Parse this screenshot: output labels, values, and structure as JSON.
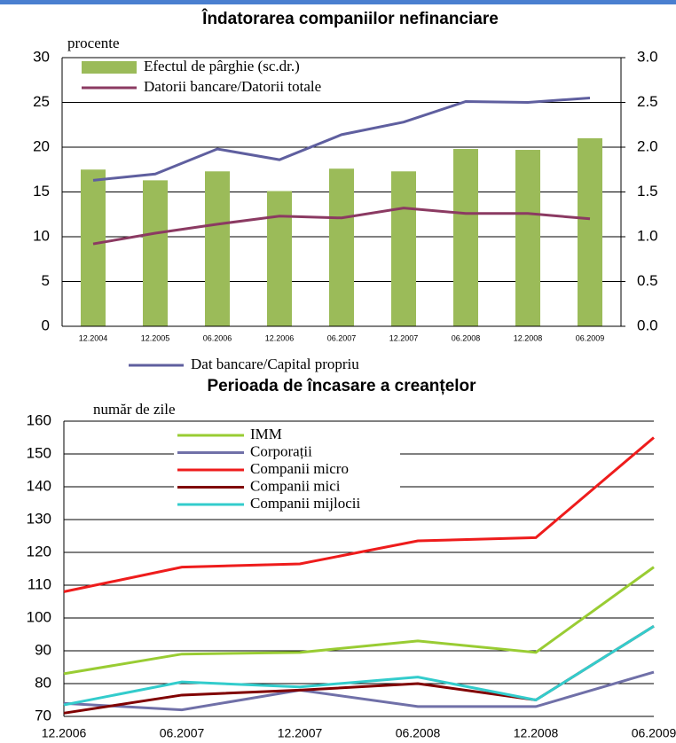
{
  "chart_data": [
    {
      "type": "bar",
      "title": "Îndatorarea companiilor nefinanciare",
      "y_label": "procente",
      "categories": [
        "12.2004",
        "12.2005",
        "06.2006",
        "12.2006",
        "06.2007",
        "12.2007",
        "06.2008",
        "12.2008",
        "06.2009"
      ],
      "series": [
        {
          "name": "Efectul de pârghie (sc.dr.)",
          "kind": "bar",
          "axis": "y2",
          "color": "#9bbb59",
          "values": [
            1.75,
            1.63,
            1.73,
            1.51,
            1.76,
            1.73,
            1.98,
            1.97,
            2.1
          ]
        },
        {
          "name": "Datorii bancare/Datorii totale",
          "kind": "line",
          "color": "#8b3a62",
          "values": [
            9.2,
            10.4,
            11.4,
            12.3,
            12.1,
            13.2,
            12.6,
            12.6,
            12.0
          ]
        },
        {
          "name": "Dat  bancare/Capital propriu",
          "kind": "line",
          "color": "#5f5f9f",
          "values": [
            16.3,
            17.0,
            19.8,
            18.6,
            21.4,
            22.8,
            25.1,
            25.0,
            25.5
          ]
        }
      ],
      "ylim": [
        0,
        30
      ],
      "yticks": [
        0,
        5,
        10,
        15,
        20,
        25,
        30
      ],
      "y2lim": [
        0,
        3
      ],
      "y2ticks": [
        {
          "value": 0,
          "label": "0.0"
        },
        {
          "value": 0.5,
          "label": "0.5"
        },
        {
          "value": 1,
          "label": "1.0"
        },
        {
          "value": 1.5,
          "label": "1.5"
        },
        {
          "value": 2,
          "label": "2.0"
        },
        {
          "value": 2.5,
          "label": "2.5"
        },
        {
          "value": 3,
          "label": "3.0"
        }
      ],
      "grid": true
    },
    {
      "type": "line",
      "title": "Perioada de încasare a creanțelor",
      "y_label": "număr de zile",
      "categories": [
        "12.2006",
        "06.2007",
        "12.2007",
        "06.2008",
        "12.2008",
        "06.2009"
      ],
      "series": [
        {
          "name": "IMM",
          "color": "#99cc33",
          "values": [
            83,
            89,
            89.5,
            93,
            89.5,
            115.5
          ]
        },
        {
          "name": "Corporații",
          "color": "#7070a8",
          "values": [
            74,
            72,
            78,
            73,
            73,
            83.5
          ]
        },
        {
          "name": "Companii micro",
          "color": "#ee1c1c",
          "values": [
            108,
            115.5,
            116.5,
            123.5,
            124.5,
            155
          ]
        },
        {
          "name": "Companii mici",
          "color": "#800000",
          "values": [
            71,
            76.5,
            78,
            80,
            75,
            97.5
          ]
        },
        {
          "name": "Companii mijlocii",
          "color": "#33cccc",
          "values": [
            73.5,
            80.5,
            79,
            82,
            75,
            97.5
          ]
        }
      ],
      "ylim": [
        70,
        160
      ],
      "yticks": [
        70,
        80,
        90,
        100,
        110,
        120,
        130,
        140,
        150,
        160
      ],
      "grid": true
    }
  ]
}
